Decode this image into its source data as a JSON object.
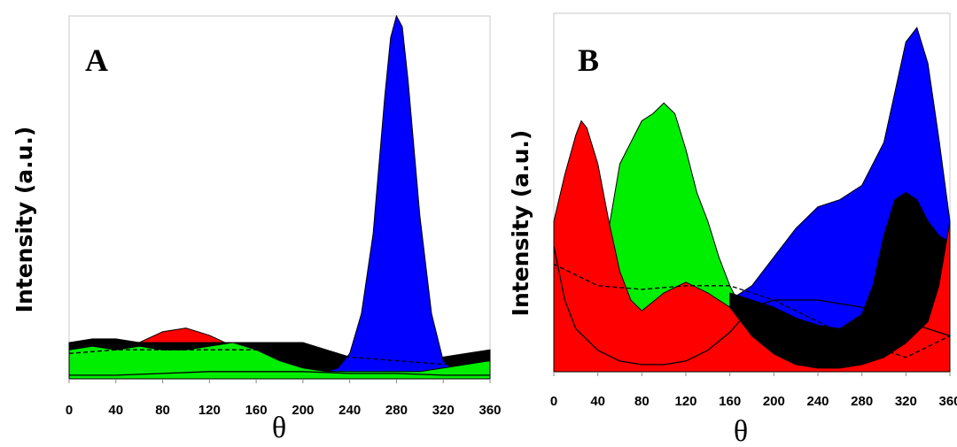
{
  "chart_data": [
    {
      "type": "area",
      "panel_label": "A",
      "xlabel": "θ",
      "ylabel": "Intensity (a.u.)",
      "xlim": [
        0,
        360
      ],
      "ylim": [
        0,
        100
      ],
      "xticks": [
        "0",
        "40",
        "80",
        "120",
        "160",
        "200",
        "240",
        "280",
        "320",
        "360"
      ],
      "grid": false,
      "legend": "none",
      "series": [
        {
          "color": "#ff0000",
          "style": "filled",
          "x": [
            0,
            20,
            40,
            60,
            80,
            100,
            120,
            140,
            160,
            180,
            200,
            220,
            240,
            260,
            280,
            300,
            320,
            340,
            360
          ],
          "y": [
            6,
            7,
            7,
            10,
            13,
            14,
            12,
            9,
            8,
            7,
            6,
            6,
            5,
            4,
            4,
            4,
            5,
            6,
            7
          ]
        },
        {
          "color": "#000000",
          "style": "filled",
          "x": [
            0,
            20,
            40,
            60,
            80,
            100,
            120,
            140,
            160,
            180,
            200,
            220,
            240,
            260,
            280,
            300,
            320,
            340,
            360
          ],
          "y": [
            10,
            11,
            11,
            10,
            10,
            10,
            10,
            10,
            10,
            10,
            10,
            8,
            6,
            5,
            5,
            5,
            6,
            7,
            8
          ]
        },
        {
          "color": "#0000ff",
          "style": "filled",
          "x": [
            220,
            230,
            240,
            250,
            260,
            270,
            275,
            280,
            285,
            290,
            300,
            310,
            320,
            330,
            340
          ],
          "y": [
            2,
            3,
            7,
            18,
            40,
            78,
            94,
            100,
            97,
            82,
            45,
            18,
            5,
            2,
            1
          ]
        },
        {
          "color": "#00ee00",
          "style": "filled",
          "x": [
            0,
            20,
            40,
            60,
            80,
            100,
            120,
            140,
            160,
            180,
            200,
            220,
            240,
            260,
            280,
            300,
            320,
            340,
            360
          ],
          "y": [
            8,
            9,
            8,
            9,
            8,
            8,
            9,
            10,
            8,
            5,
            3,
            2,
            2,
            2,
            2,
            2,
            3,
            4,
            5
          ]
        },
        {
          "color": "#000000",
          "style": "dashed",
          "x": [
            0,
            40,
            80,
            120,
            160,
            200,
            240,
            280,
            320,
            360
          ],
          "y": [
            7,
            8,
            8,
            8,
            8,
            7,
            6,
            5,
            4,
            5
          ]
        },
        {
          "color": "#000000",
          "style": "solid",
          "x": [
            0,
            40,
            80,
            120,
            160,
            200,
            240,
            280,
            320,
            360
          ],
          "y": [
            1,
            1,
            1.5,
            2,
            2,
            2,
            1.5,
            1.5,
            1,
            1
          ]
        }
      ]
    },
    {
      "type": "area",
      "panel_label": "B",
      "xlabel": "θ",
      "ylabel": "Intensity (a.u.)",
      "xlim": [
        0,
        360
      ],
      "ylim": [
        0,
        100
      ],
      "xticks": [
        "0",
        "40",
        "80",
        "120",
        "160",
        "200",
        "240",
        "280",
        "320",
        "360"
      ],
      "grid": false,
      "legend": "none",
      "series": [
        {
          "color": "#0000ff",
          "style": "filled",
          "x": [
            160,
            180,
            200,
            220,
            240,
            260,
            280,
            300,
            310,
            320,
            330,
            340,
            350,
            360
          ],
          "y": [
            20,
            24,
            32,
            40,
            46,
            48,
            52,
            64,
            78,
            92,
            96,
            86,
            65,
            42
          ]
        },
        {
          "color": "#00ee00",
          "style": "filled",
          "x": [
            40,
            50,
            60,
            70,
            80,
            90,
            100,
            110,
            120,
            130,
            140,
            150,
            160,
            170,
            180,
            200,
            220,
            240,
            260,
            280,
            300
          ],
          "y": [
            18,
            40,
            58,
            64,
            70,
            72,
            75,
            72,
            62,
            50,
            42,
            32,
            24,
            18,
            13,
            6,
            4,
            3,
            3,
            3,
            3
          ]
        },
        {
          "color": "#000000",
          "style": "filled",
          "x": [
            160,
            180,
            200,
            220,
            240,
            260,
            280,
            290,
            300,
            310,
            320,
            330,
            340,
            350,
            360
          ],
          "y": [
            22,
            20,
            18,
            15,
            13,
            12,
            16,
            24,
            38,
            48,
            50,
            48,
            42,
            38,
            36
          ]
        },
        {
          "color": "#ff0000",
          "style": "filled",
          "x": [
            0,
            10,
            20,
            25,
            30,
            40,
            50,
            60,
            70,
            80,
            100,
            120,
            140,
            160,
            180,
            200,
            220,
            240,
            260,
            280,
            300,
            320,
            340,
            350,
            360
          ],
          "y": [
            42,
            55,
            66,
            70,
            68,
            58,
            42,
            28,
            20,
            17,
            22,
            25,
            22,
            18,
            10,
            5,
            2,
            1,
            1,
            2,
            4,
            8,
            14,
            24,
            42
          ]
        },
        {
          "color": "#000000",
          "style": "dashed",
          "x": [
            0,
            20,
            40,
            80,
            120,
            160,
            200,
            240,
            280,
            320,
            360
          ],
          "y": [
            30,
            27,
            24,
            23,
            24,
            24,
            20,
            14,
            8,
            4,
            10
          ]
        },
        {
          "color": "#000000",
          "style": "solid",
          "x": [
            0,
            10,
            20,
            40,
            60,
            80,
            100,
            120,
            140,
            160,
            180,
            200,
            240,
            280,
            320,
            360
          ],
          "y": [
            35,
            20,
            12,
            6,
            3,
            2,
            2,
            3,
            6,
            11,
            18,
            20,
            20,
            18,
            14,
            10
          ]
        }
      ]
    }
  ]
}
